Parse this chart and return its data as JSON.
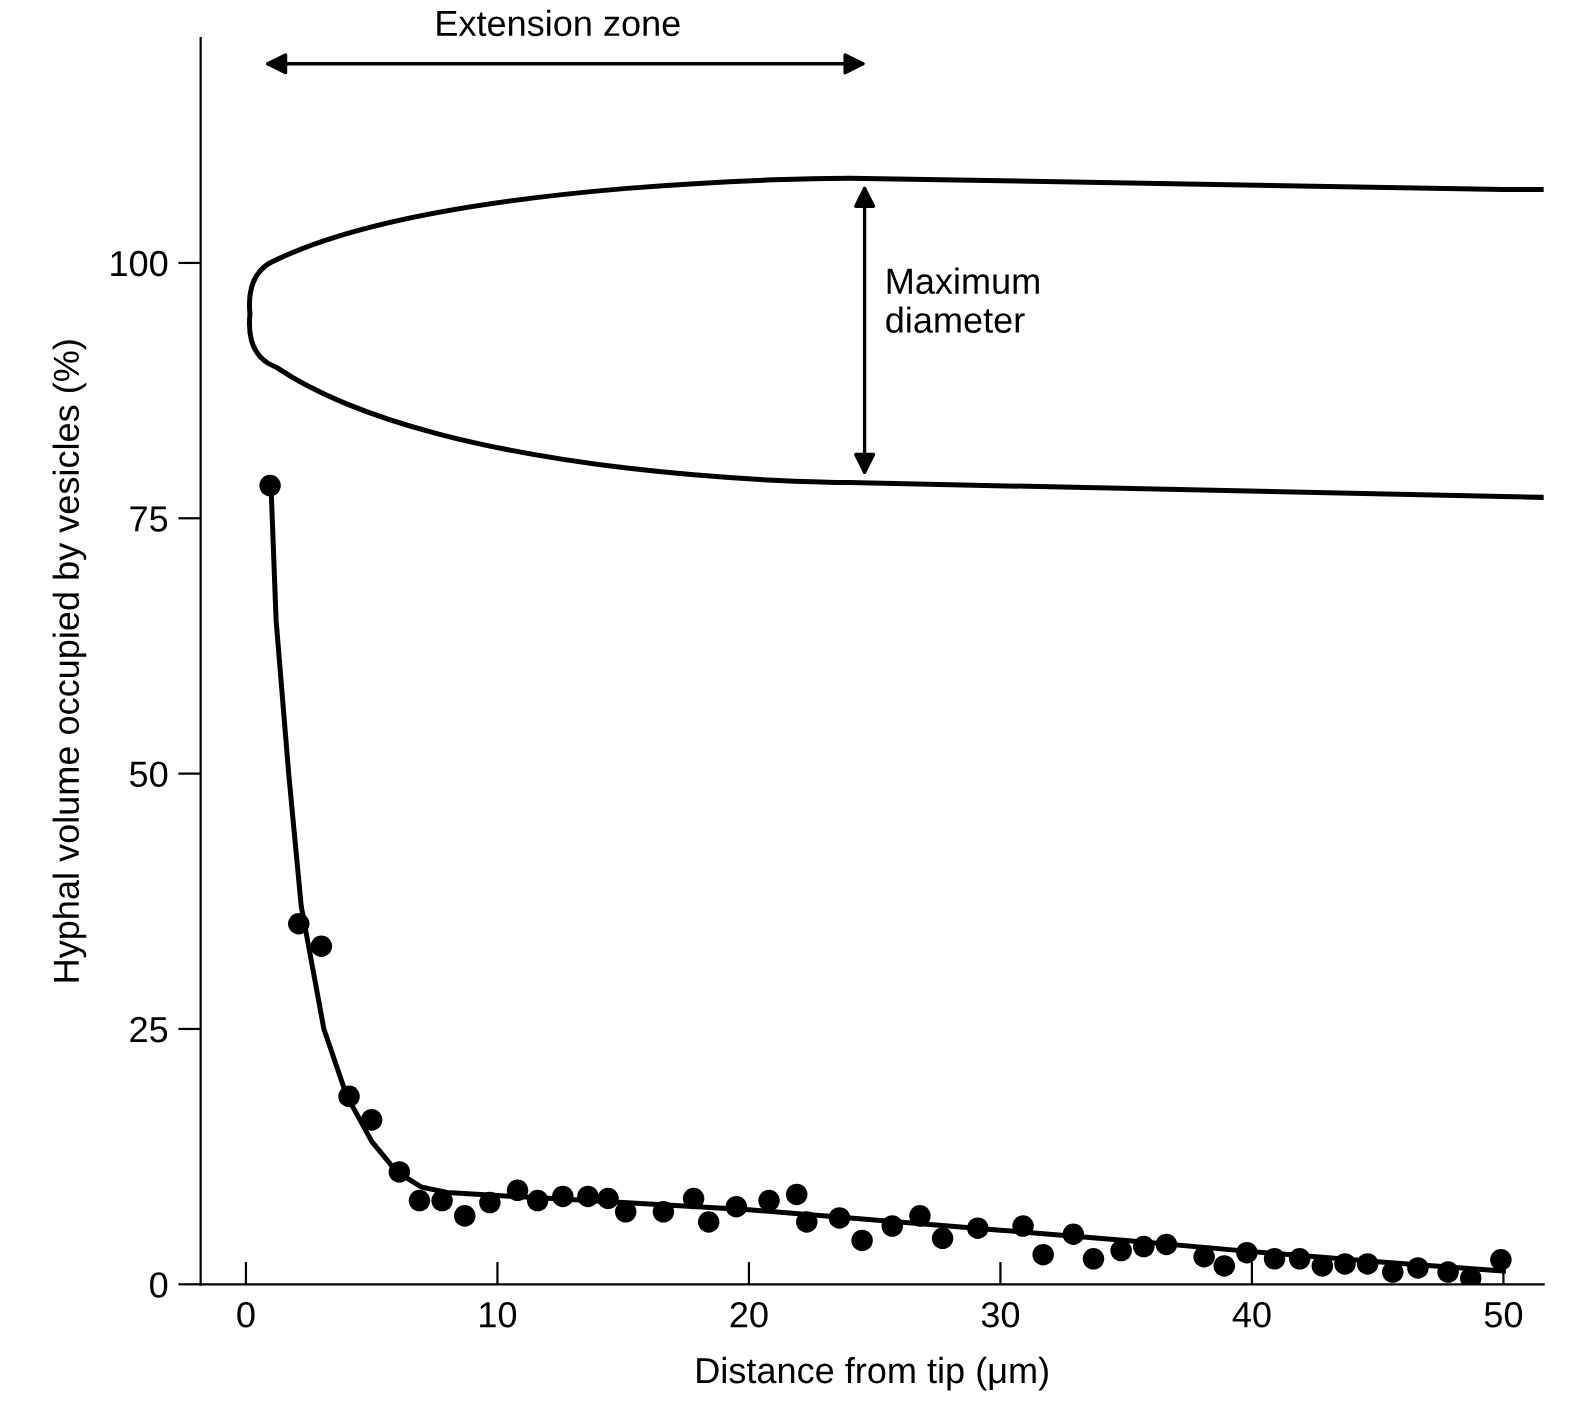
{
  "chart_data": {
    "type": "scatter",
    "xlabel": "Distance from tip (μm)",
    "ylabel": "Hyphal volume occupied by vesicles (%)",
    "annotations": [
      "Extension zone",
      "Maximum\ndiameter"
    ],
    "xlim": [
      -1.8,
      51.6
    ],
    "ylim": [
      0,
      122
    ],
    "xticks": [
      0,
      10,
      20,
      30,
      40,
      50
    ],
    "yticks": [
      0,
      25,
      50,
      75,
      100
    ],
    "grid": false,
    "legend": false,
    "marker": "circle",
    "series": [
      {
        "type": "scatter",
        "color": "#000000",
        "x": [
          0.96,
          2.1,
          3.0,
          4.1,
          5.0,
          6.1,
          6.9,
          7.8,
          8.7,
          9.7,
          10.8,
          11.6,
          12.6,
          13.6,
          14.4,
          15.1,
          16.6,
          17.8,
          18.4,
          19.5,
          20.8,
          21.9,
          22.3,
          23.6,
          24.5,
          25.7,
          26.8,
          27.7,
          29.1,
          30.9,
          31.7,
          32.9,
          33.7,
          34.8,
          35.7,
          36.6,
          38.1,
          38.9,
          39.8,
          40.9,
          41.9,
          42.8,
          43.7,
          44.6,
          45.6,
          46.6,
          47.8,
          48.7,
          49.9
        ],
        "values": [
          78.2,
          35.3,
          33.1,
          18.4,
          16.1,
          11,
          8.2,
          8.2,
          6.7,
          8,
          9.2,
          8.2,
          8.6,
          8.6,
          8.4,
          7.1,
          7.1,
          8.4,
          6.1,
          7.6,
          8.2,
          8.8,
          6.1,
          6.5,
          4.3,
          5.7,
          6.7,
          4.5,
          5.5,
          5.7,
          2.9,
          4.9,
          2.5,
          3.3,
          3.7,
          3.9,
          2.7,
          1.8,
          3.1,
          2.5,
          2.5,
          1.8,
          2.0,
          2.0,
          1.2,
          1.6,
          1.2,
          0.6,
          2.4
        ]
      },
      {
        "type": "line",
        "color": "#000000",
        "marker": "none",
        "line_style": "solid",
        "x": [
          1,
          1.2,
          1.7,
          2.2,
          3.1,
          4,
          5,
          6,
          7,
          8,
          10,
          15,
          20,
          25,
          30,
          35,
          40,
          45,
          50
        ],
        "values": [
          78,
          65,
          50,
          37,
          25,
          18.5,
          14,
          11,
          9.5,
          9,
          8.7,
          8,
          7.3,
          6.3,
          5.3,
          4.3,
          3.2,
          2.2,
          1.3
        ]
      }
    ]
  }
}
